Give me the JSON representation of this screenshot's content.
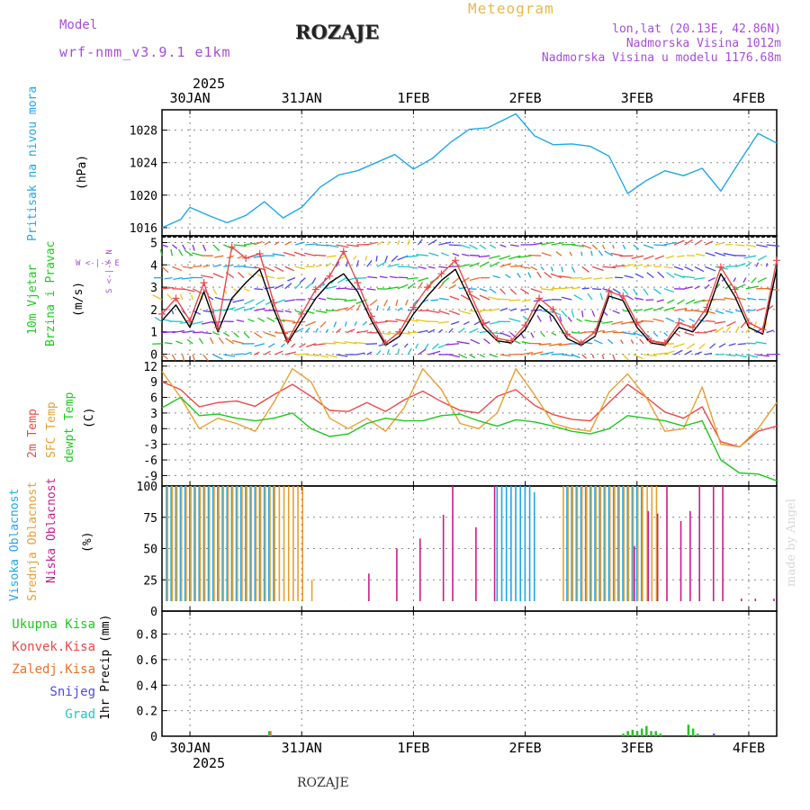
{
  "header": {
    "model_label": "Model",
    "model_name": "wrf-nmm_v3.9.1 e1km",
    "location": "ROZAJE",
    "product": "Meteogram",
    "lonlat": "lon,lat (20.13E, 42.86N)",
    "elevation": "Nadmorska Visina 1012m",
    "model_elevation": "Nadmorska Visina u modelu 1176.68m",
    "footer_location": "ROZAJE",
    "credit": "made by Angel",
    "colors": {
      "model": "#a64dd8",
      "product": "#e8b84a",
      "info": "#a64dd8"
    }
  },
  "time_axis": {
    "top_year": "2025",
    "bottom_year": "2025",
    "days": [
      "30JAN",
      "31JAN",
      "1FEB",
      "2FEB",
      "3FEB",
      "4FEB"
    ],
    "start_hours_before_30JAN": 6,
    "total_hours": 132
  },
  "panels": {
    "pressure": {
      "labels": [
        {
          "text": "Pritisak na nivou mora",
          "color": "#1ea8e8"
        },
        {
          "text": "(hPa)",
          "color": "#000000"
        }
      ],
      "yticks": [
        "1016",
        "1020",
        "1024",
        "1028"
      ]
    },
    "wind": {
      "labels": [
        {
          "text": "10m Vjetar",
          "color": "#1ec81e"
        },
        {
          "text": "Brzina i Pravac",
          "color": "#1ec81e"
        },
        {
          "text": "(m/s)",
          "color": "#000000"
        }
      ],
      "compass": "W <-|-> E",
      "compass2": "S <-|-> N",
      "yticks": [
        "0",
        "1",
        "2",
        "3",
        "4",
        "5"
      ]
    },
    "temperature": {
      "labels": [
        {
          "text": "2m Temp",
          "color": "#e84a4a"
        },
        {
          "text": "SFC Temp",
          "color": "#e8a030"
        },
        {
          "text": "dewpt Temp",
          "color": "#1ec81e"
        },
        {
          "text": "(C)",
          "color": "#000000"
        }
      ],
      "yticks": [
        "-9",
        "-6",
        "-3",
        "0",
        "3",
        "6",
        "9",
        "12"
      ]
    },
    "cloud": {
      "labels": [
        {
          "text": "Visoka Oblacnost",
          "color": "#1ea8e8"
        },
        {
          "text": "Srednja Oblacnost",
          "color": "#e8a030"
        },
        {
          "text": "Niska Oblacnost",
          "color": "#c81e8c"
        },
        {
          "text": "(%)",
          "color": "#000000"
        }
      ],
      "yticks": [
        "0",
        "25",
        "50",
        "75",
        "100"
      ]
    },
    "precip": {
      "labels": [
        {
          "text": "Ukupna Kisa",
          "color": "#1ec81e"
        },
        {
          "text": "Konvek.Kisa",
          "color": "#e84a4a"
        },
        {
          "text": "Zaledj.Kisa",
          "color": "#e8702a"
        },
        {
          "text": "Snijeg",
          "color": "#4a4ae8"
        },
        {
          "text": "Grad",
          "color": "#1ec8c8"
        }
      ],
      "axis_label": "1hr Precip (mm)",
      "yticks": [
        "0",
        "0.2",
        "0.4",
        "0.6",
        "0.8"
      ]
    }
  },
  "chart_data": [
    {
      "type": "line",
      "name": "pressure",
      "ylim": [
        1015,
        1030.5
      ],
      "series": [
        {
          "name": "",
          "color": "#1ea8e8",
          "x_hours": [
            0,
            4,
            6,
            10,
            14,
            18,
            22,
            26,
            30,
            34,
            38,
            42,
            46,
            50,
            54,
            58,
            62,
            66,
            70,
            76,
            80,
            84,
            88,
            92,
            96,
            100,
            104,
            108,
            112,
            116,
            120,
            124,
            128,
            132
          ],
          "values": [
            1016,
            1017,
            1018.5,
            1017.5,
            1016.6,
            1017.5,
            1019.2,
            1017.2,
            1018.5,
            1021,
            1022.5,
            1023,
            1024,
            1025,
            1023.2,
            1024.5,
            1026.5,
            1028.1,
            1028.3,
            1030,
            1027.3,
            1026.2,
            1026.3,
            1026,
            1024.8,
            1020.2,
            1021.8,
            1023,
            1022.4,
            1023.3,
            1020.5,
            1024.1,
            1027.6,
            1026.4
          ]
        }
      ]
    },
    {
      "type": "line",
      "name": "wind_speed",
      "ylim": [
        -0.3,
        5.3
      ],
      "series": [
        {
          "name": "",
          "color": "#000000",
          "x_hours": [
            0,
            3,
            6,
            9,
            12,
            15,
            18,
            21,
            24,
            27,
            30,
            33,
            36,
            39,
            42,
            45,
            48,
            51,
            54,
            57,
            60,
            63,
            66,
            69,
            72,
            75,
            78,
            81,
            84,
            87,
            90,
            93,
            96,
            99,
            102,
            105,
            108,
            111,
            114,
            117,
            120,
            123,
            126,
            129,
            132
          ],
          "values": [
            1.5,
            2.2,
            1.2,
            2.8,
            1.0,
            2.5,
            3.2,
            3.8,
            2.0,
            0.5,
            1.5,
            2.5,
            3.2,
            3.6,
            2.8,
            1.5,
            0.4,
            0.8,
            1.8,
            2.6,
            3.3,
            3.8,
            2.5,
            1.2,
            0.6,
            0.5,
            1.1,
            2.2,
            1.7,
            0.7,
            0.4,
            0.8,
            2.6,
            2.4,
            1.2,
            0.5,
            0.4,
            1.2,
            1.0,
            1.8,
            3.6,
            2.6,
            1.2,
            0.9,
            3.8
          ]
        },
        {
          "name": "",
          "color": "#e84a4a",
          "x_hours": [
            0,
            3,
            6,
            9,
            12,
            15,
            18,
            21,
            24,
            27,
            30,
            33,
            36,
            39,
            42,
            45,
            48,
            51,
            54,
            57,
            60,
            63,
            66,
            69,
            72,
            75,
            78,
            81,
            84,
            87,
            90,
            93,
            96,
            99,
            102,
            105,
            108,
            111,
            114,
            117,
            120,
            123,
            126,
            129,
            132
          ],
          "values": [
            1.8,
            2.5,
            1.5,
            3.2,
            1.2,
            4.8,
            4.3,
            4.5,
            2.3,
            0.6,
            1.8,
            2.9,
            3.5,
            4.6,
            3.2,
            1.7,
            0.5,
            1.0,
            2.1,
            3.0,
            3.6,
            4.2,
            2.8,
            1.4,
            0.7,
            0.6,
            1.3,
            2.5,
            2.0,
            0.9,
            0.5,
            1.0,
            2.8,
            2.6,
            1.4,
            0.6,
            0.5,
            1.4,
            1.2,
            2.1,
            3.9,
            2.9,
            1.4,
            1.1,
            4.2
          ]
        }
      ]
    },
    {
      "type": "line",
      "name": "temperature",
      "ylim": [
        -11,
        13
      ],
      "series": [
        {
          "name": "",
          "color": "#e84a4a",
          "x_hours": [
            0,
            4,
            8,
            12,
            16,
            20,
            24,
            28,
            32,
            36,
            40,
            44,
            48,
            52,
            56,
            60,
            64,
            68,
            72,
            76,
            80,
            84,
            88,
            92,
            96,
            100,
            104,
            108,
            112,
            116,
            120,
            124,
            128,
            132
          ],
          "values": [
            9,
            7.5,
            4.2,
            5,
            5.3,
            4.3,
            6.5,
            8.5,
            6.2,
            3.5,
            3.3,
            5,
            3.3,
            5.5,
            7.2,
            5.2,
            3.5,
            3,
            6.2,
            7.5,
            4.5,
            2.7,
            1.8,
            1.5,
            5,
            8.5,
            6,
            3.2,
            2,
            4.2,
            -2.5,
            -3.5,
            -0.5,
            0.5
          ]
        },
        {
          "name": "",
          "color": "#e8a030",
          "x_hours": [
            0,
            4,
            8,
            12,
            16,
            20,
            24,
            28,
            32,
            36,
            40,
            44,
            48,
            52,
            56,
            60,
            64,
            68,
            72,
            76,
            80,
            84,
            88,
            92,
            96,
            100,
            104,
            108,
            112,
            116,
            120,
            124,
            128,
            132
          ],
          "values": [
            11,
            6,
            0,
            2,
            1,
            -0.5,
            5,
            11.5,
            9,
            2,
            0,
            2,
            -0.5,
            4,
            11.5,
            7.5,
            1,
            0,
            3,
            11.5,
            6.5,
            1,
            0,
            -0.5,
            7,
            10.5,
            6,
            -0.5,
            0,
            8,
            -3,
            -3.5,
            0,
            5
          ]
        },
        {
          "name": "",
          "color": "#1ec81e",
          "x_hours": [
            0,
            4,
            8,
            12,
            16,
            20,
            24,
            28,
            32,
            36,
            40,
            44,
            48,
            52,
            56,
            60,
            64,
            68,
            72,
            76,
            80,
            84,
            88,
            92,
            96,
            100,
            104,
            108,
            112,
            116,
            120,
            124,
            128,
            132
          ],
          "values": [
            4,
            6,
            2.5,
            2.8,
            2,
            1.5,
            2,
            3,
            0,
            -1.5,
            -1,
            1,
            2,
            1.5,
            1.5,
            2.5,
            2.8,
            1.5,
            0.5,
            1.7,
            1.3,
            0.5,
            -0.5,
            -1,
            0,
            2.5,
            2,
            1.5,
            0.5,
            1.5,
            -6,
            -8.5,
            -8.7,
            -10
          ]
        }
      ]
    },
    {
      "type": "bar",
      "name": "cloud",
      "ylim": [
        0,
        100
      ],
      "series": [
        {
          "name": "",
          "color": "#1ea8e8",
          "x_hours": [
            1,
            2,
            3,
            4,
            5,
            6,
            7,
            8,
            9,
            10,
            11,
            12,
            13,
            14,
            15,
            16,
            17,
            18,
            19,
            20,
            21,
            22,
            23,
            24,
            72,
            73,
            74,
            75,
            76,
            77,
            78,
            79,
            80,
            87,
            88,
            89,
            90,
            91,
            92,
            93,
            94,
            95,
            96,
            97,
            98,
            99,
            100,
            101,
            102,
            103
          ],
          "values": [
            100,
            100,
            100,
            100,
            100,
            100,
            100,
            100,
            100,
            100,
            100,
            100,
            100,
            100,
            100,
            100,
            100,
            100,
            100,
            100,
            100,
            100,
            100,
            100,
            100,
            100,
            100,
            100,
            100,
            100,
            100,
            100,
            95,
            100,
            100,
            100,
            100,
            100,
            100,
            100,
            100,
            100,
            100,
            100,
            100,
            100,
            100,
            100,
            100,
            100
          ]
        },
        {
          "name": "",
          "color": "#e8a030",
          "x_hours": [
            1,
            2,
            3,
            4,
            5,
            6,
            7,
            8,
            9,
            10,
            11,
            12,
            13,
            14,
            15,
            16,
            17,
            18,
            19,
            20,
            21,
            22,
            23,
            24,
            25,
            26,
            27,
            28,
            29,
            30,
            32,
            39,
            86,
            87,
            88,
            89,
            90,
            91,
            92,
            93,
            94,
            95,
            96,
            97,
            98,
            99,
            100,
            101,
            102,
            103,
            104,
            105,
            106
          ],
          "values": [
            100,
            100,
            100,
            100,
            100,
            100,
            100,
            100,
            100,
            100,
            100,
            100,
            100,
            100,
            100,
            100,
            100,
            100,
            100,
            100,
            100,
            100,
            100,
            100,
            100,
            100,
            100,
            100,
            100,
            100,
            25,
            8,
            100,
            100,
            100,
            100,
            100,
            100,
            100,
            100,
            100,
            100,
            100,
            100,
            100,
            100,
            100,
            100,
            100,
            100,
            100,
            100,
            100
          ]
        },
        {
          "name": "",
          "color": "#c81e8c",
          "x_hours": [
            42,
            44,
            46,
            50,
            53,
            55,
            60,
            62,
            67,
            71,
            101,
            104,
            106,
            108,
            111,
            113,
            115,
            118,
            120,
            124,
            127,
            131
          ],
          "values": [
            2,
            30,
            8,
            50,
            8,
            58,
            77,
            100,
            67,
            100,
            52,
            80,
            78,
            100,
            72,
            80,
            100,
            100,
            100,
            10,
            10,
            10
          ]
        }
      ]
    },
    {
      "type": "bar",
      "name": "precip",
      "ylim": [
        0,
        0.98
      ],
      "series": [
        {
          "name": "",
          "color": "#1ec81e",
          "x_hours": [
            23,
            99,
            100,
            101,
            102,
            103,
            104,
            105,
            106,
            107,
            113,
            114,
            115
          ],
          "values": [
            0.04,
            0.02,
            0.04,
            0.05,
            0.04,
            0.06,
            0.08,
            0.04,
            0.04,
            0.02,
            0.09,
            0.06,
            0.02
          ]
        },
        {
          "name": "",
          "color": "#e8702a",
          "x_hours": [
            23
          ],
          "values": [
            0.04
          ]
        },
        {
          "name": "",
          "color": "#4a4ae8",
          "x_hours": [
            118
          ],
          "values": [
            0.02
          ]
        }
      ]
    }
  ]
}
